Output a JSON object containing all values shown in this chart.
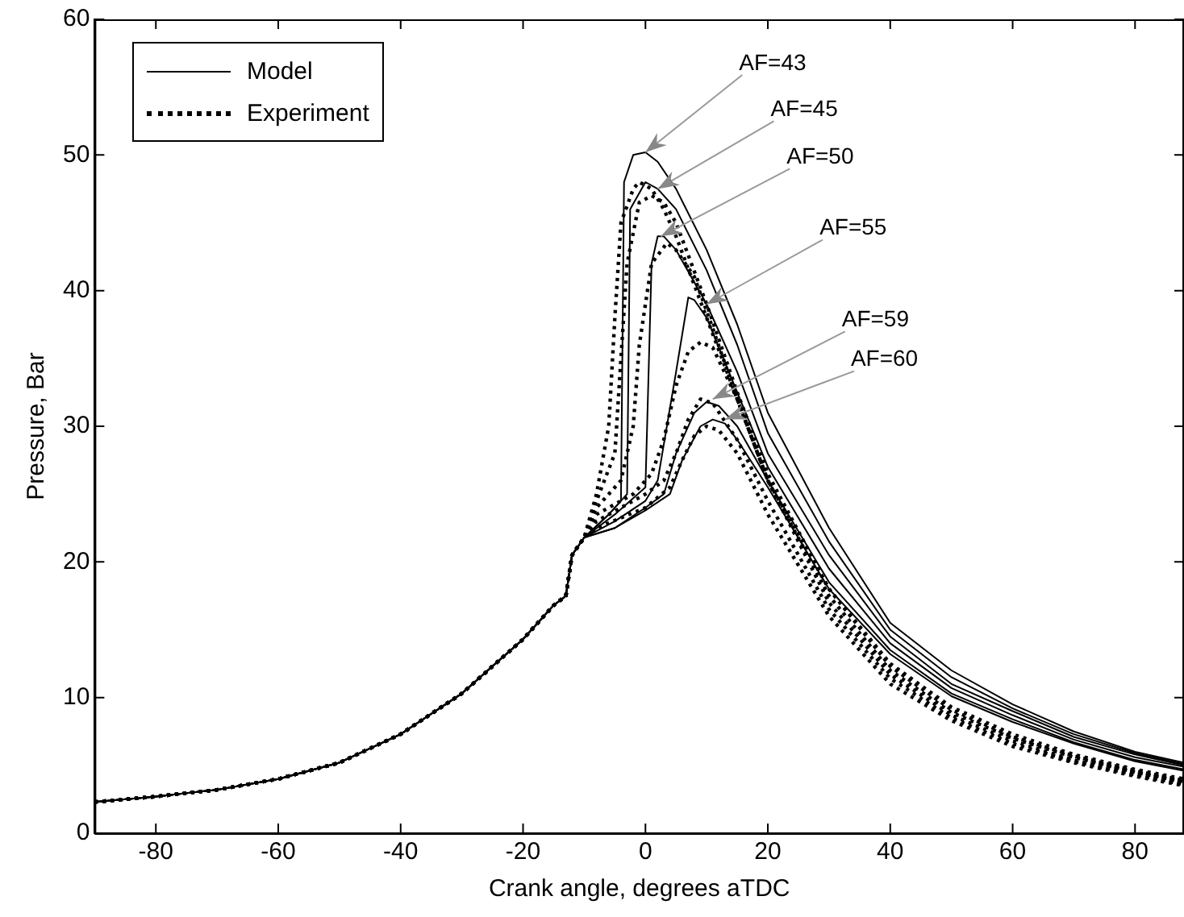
{
  "chart_data": {
    "type": "line",
    "xlabel": "Crank angle, degrees aTDC",
    "ylabel": "Pressure, Bar",
    "xlim": [
      -90,
      88
    ],
    "xticks": [
      -80,
      -60,
      -40,
      -20,
      0,
      20,
      40,
      60,
      80
    ],
    "ylim": [
      0,
      60
    ],
    "yticks": [
      0,
      10,
      20,
      30,
      40,
      50,
      60
    ],
    "grid": false,
    "legend": "top left",
    "marker": "none",
    "series": [
      {
        "name": "Model",
        "color": "#000000",
        "line_style": "solid",
        "x": [
          -90,
          -80,
          -70,
          -60,
          -50,
          -40,
          -30,
          -20,
          -15,
          -13,
          -12,
          -10,
          -6,
          -4,
          -3.5,
          -2,
          0,
          2,
          5,
          10,
          15,
          20,
          30,
          40,
          50,
          60,
          70,
          80,
          88
        ],
        "values": [
          2.3,
          2.7,
          3.2,
          4.0,
          5.2,
          7.3,
          10.3,
          14.3,
          16.8,
          17.5,
          20.5,
          21.8,
          23.5,
          24.5,
          48,
          50,
          50.2,
          49.5,
          47.5,
          43,
          37.5,
          31,
          22.5,
          15.5,
          12,
          9.5,
          7.5,
          6,
          5.2
        ]
      },
      {
        "color": "#000000",
        "line_style": "solid",
        "x": [
          -90,
          -80,
          -70,
          -60,
          -50,
          -40,
          -30,
          -20,
          -15,
          -13,
          -12,
          -10,
          -6,
          -3,
          -2.5,
          0,
          2,
          5,
          10,
          15,
          20,
          30,
          40,
          50,
          60,
          70,
          80,
          88
        ],
        "values": [
          2.3,
          2.7,
          3.2,
          4.0,
          5.2,
          7.3,
          10.3,
          14.3,
          16.8,
          17.5,
          20.5,
          21.8,
          23.5,
          25,
          46,
          48,
          47.5,
          46,
          41.5,
          36,
          29.5,
          21.5,
          15,
          11.5,
          9.2,
          7.3,
          5.9,
          5.1
        ]
      },
      {
        "color": "#000000",
        "line_style": "solid",
        "x": [
          -90,
          -80,
          -70,
          -60,
          -50,
          -40,
          -30,
          -20,
          -15,
          -13,
          -12,
          -10,
          -5,
          0,
          1,
          2,
          3,
          5,
          10,
          15,
          20,
          30,
          40,
          50,
          60,
          70,
          80,
          88
        ],
        "values": [
          2.3,
          2.7,
          3.2,
          4.0,
          5.2,
          7.3,
          10.3,
          14.3,
          16.8,
          17.5,
          20.5,
          21.8,
          23.5,
          25.5,
          42,
          44,
          44,
          43,
          39,
          34,
          28,
          20.5,
          14.5,
          11,
          9,
          7.1,
          5.8,
          5.0
        ]
      },
      {
        "color": "#000000",
        "line_style": "solid",
        "x": [
          -90,
          -80,
          -70,
          -60,
          -50,
          -40,
          -30,
          -20,
          -15,
          -13,
          -12,
          -10,
          -5,
          0,
          2,
          5,
          7,
          8,
          10,
          15,
          20,
          30,
          40,
          50,
          60,
          70,
          80,
          88
        ],
        "values": [
          2.3,
          2.7,
          3.2,
          4.0,
          5.2,
          7.3,
          10.3,
          14.3,
          16.8,
          17.5,
          20.5,
          21.8,
          23,
          24.5,
          26,
          34,
          39.5,
          39.3,
          38,
          32.5,
          27,
          19.5,
          14,
          10.7,
          8.7,
          6.9,
          5.6,
          4.9
        ]
      },
      {
        "color": "#000000",
        "line_style": "solid",
        "x": [
          -90,
          -80,
          -70,
          -60,
          -50,
          -40,
          -30,
          -20,
          -15,
          -13,
          -12,
          -10,
          -5,
          0,
          3,
          5,
          8,
          10,
          12,
          15,
          20,
          30,
          40,
          50,
          60,
          70,
          80,
          88
        ],
        "values": [
          2.3,
          2.7,
          3.2,
          4.0,
          5.2,
          7.3,
          10.3,
          14.3,
          16.8,
          17.5,
          20.5,
          21.8,
          22.5,
          24,
          25,
          28,
          31,
          31.8,
          31.5,
          30,
          26,
          18.5,
          13.5,
          10.3,
          8.4,
          6.7,
          5.4,
          4.7
        ]
      },
      {
        "color": "#000000",
        "line_style": "solid",
        "x": [
          -90,
          -80,
          -70,
          -60,
          -50,
          -40,
          -30,
          -20,
          -15,
          -13,
          -12,
          -10,
          -5,
          0,
          4,
          6,
          9,
          11,
          13,
          15,
          20,
          30,
          40,
          50,
          60,
          70,
          80,
          88
        ],
        "values": [
          2.3,
          2.7,
          3.2,
          4.0,
          5.2,
          7.3,
          10.3,
          14.3,
          16.8,
          17.5,
          20.5,
          21.8,
          22.5,
          23.8,
          25,
          27.5,
          30,
          30.5,
          30.2,
          29,
          25.5,
          18,
          13.2,
          10.1,
          8.2,
          6.6,
          5.3,
          4.6
        ]
      },
      {
        "name": "Experiment",
        "color": "#000000",
        "line_style": "dotted",
        "x": [
          -90,
          -80,
          -70,
          -60,
          -50,
          -40,
          -30,
          -20,
          -15,
          -13,
          -12,
          -10,
          -8,
          -6,
          -5,
          -4,
          -2,
          -1,
          1,
          3,
          5,
          10,
          15,
          20,
          30,
          40,
          50,
          60,
          70,
          80,
          88
        ],
        "values": [
          2.3,
          2.7,
          3.2,
          4.0,
          5.2,
          7.3,
          10.3,
          14.3,
          16.8,
          17.5,
          20.5,
          21.8,
          25,
          30,
          38,
          45,
          47.5,
          48,
          47.5,
          46,
          44,
          38,
          32,
          26,
          18,
          12.5,
          9.3,
          7.3,
          5.8,
          4.7,
          4.0
        ]
      },
      {
        "color": "#000000",
        "line_style": "dotted",
        "x": [
          -90,
          -80,
          -70,
          -60,
          -50,
          -40,
          -30,
          -20,
          -15,
          -13,
          -12,
          -10,
          -8,
          -5,
          -4,
          -3,
          -1,
          1,
          3,
          5,
          10,
          15,
          20,
          30,
          40,
          50,
          60,
          70,
          80,
          88
        ],
        "values": [
          2.3,
          2.7,
          3.2,
          4.0,
          5.2,
          7.3,
          10.3,
          14.3,
          16.8,
          17.5,
          20.5,
          21.8,
          24.5,
          28,
          35,
          42,
          46.5,
          47,
          46.5,
          45,
          39,
          32.5,
          26.5,
          18,
          12.3,
          9.1,
          7.1,
          5.7,
          4.6,
          3.9
        ]
      },
      {
        "color": "#000000",
        "line_style": "dotted",
        "x": [
          -90,
          -80,
          -70,
          -60,
          -50,
          -40,
          -30,
          -20,
          -15,
          -13,
          -12,
          -10,
          -8,
          -4,
          -2,
          -1,
          1,
          3.5,
          5,
          8,
          10,
          15,
          20,
          30,
          40,
          50,
          60,
          70,
          80,
          88
        ],
        "values": [
          2.3,
          2.7,
          3.2,
          4.0,
          5.2,
          7.3,
          10.3,
          14.3,
          16.8,
          17.5,
          20.5,
          21.8,
          24,
          26,
          30,
          36,
          42,
          43.5,
          43,
          41,
          38.5,
          32,
          26,
          17.5,
          12,
          8.9,
          7,
          5.6,
          4.5,
          3.8
        ]
      },
      {
        "color": "#000000",
        "line_style": "dotted",
        "x": [
          -90,
          -80,
          -70,
          -60,
          -50,
          -40,
          -30,
          -20,
          -15,
          -13,
          -12,
          -10,
          -8,
          -2,
          1,
          3,
          5,
          7,
          9,
          11,
          15,
          20,
          30,
          40,
          50,
          60,
          70,
          80,
          88
        ],
        "values": [
          2.3,
          2.7,
          3.2,
          4.0,
          5.2,
          7.3,
          10.3,
          14.3,
          16.8,
          17.5,
          20.5,
          21.8,
          23.5,
          25,
          26.5,
          29,
          33,
          35.5,
          36.2,
          35.8,
          32,
          26,
          17,
          11.7,
          8.7,
          6.8,
          5.4,
          4.4,
          3.7
        ]
      },
      {
        "color": "#000000",
        "line_style": "dotted",
        "x": [
          -90,
          -80,
          -70,
          -60,
          -50,
          -40,
          -30,
          -20,
          -15,
          -13,
          -12,
          -10,
          -8,
          0,
          3,
          5,
          7,
          9,
          11,
          15,
          20,
          30,
          40,
          50,
          60,
          70,
          80,
          88
        ],
        "values": [
          2.3,
          2.7,
          3.2,
          4.0,
          5.2,
          7.3,
          10.3,
          14.3,
          16.8,
          17.5,
          20.5,
          21.8,
          23,
          25,
          26,
          28,
          30.5,
          32,
          31.7,
          29,
          24.5,
          16.5,
          11.4,
          8.5,
          6.6,
          5.3,
          4.3,
          3.6
        ]
      },
      {
        "color": "#000000",
        "line_style": "dotted",
        "x": [
          -90,
          -80,
          -70,
          -60,
          -50,
          -40,
          -30,
          -20,
          -15,
          -13,
          -12,
          -10,
          -8,
          0,
          4,
          6,
          8,
          10,
          12,
          15,
          20,
          30,
          40,
          50,
          60,
          70,
          80,
          88
        ],
        "values": [
          2.3,
          2.7,
          3.2,
          4.0,
          5.2,
          7.3,
          10.3,
          14.3,
          16.8,
          17.5,
          20.5,
          21.8,
          22.5,
          24,
          25.5,
          27.5,
          29.3,
          30,
          29.7,
          28,
          23.5,
          16,
          11,
          8.3,
          6.4,
          5.2,
          4.2,
          3.5
        ]
      }
    ],
    "annotations": [
      {
        "text": "AF=43",
        "x": 0,
        "y": 50.2
      },
      {
        "text": "AF=45",
        "x": 2,
        "y": 47.5
      },
      {
        "text": "AF=50",
        "x": 2.5,
        "y": 44
      },
      {
        "text": "AF=55",
        "x": 10,
        "y": 39
      },
      {
        "text": "AF=59",
        "x": 11,
        "y": 32
      },
      {
        "text": "AF=60",
        "x": 13,
        "y": 30.5
      }
    ]
  }
}
